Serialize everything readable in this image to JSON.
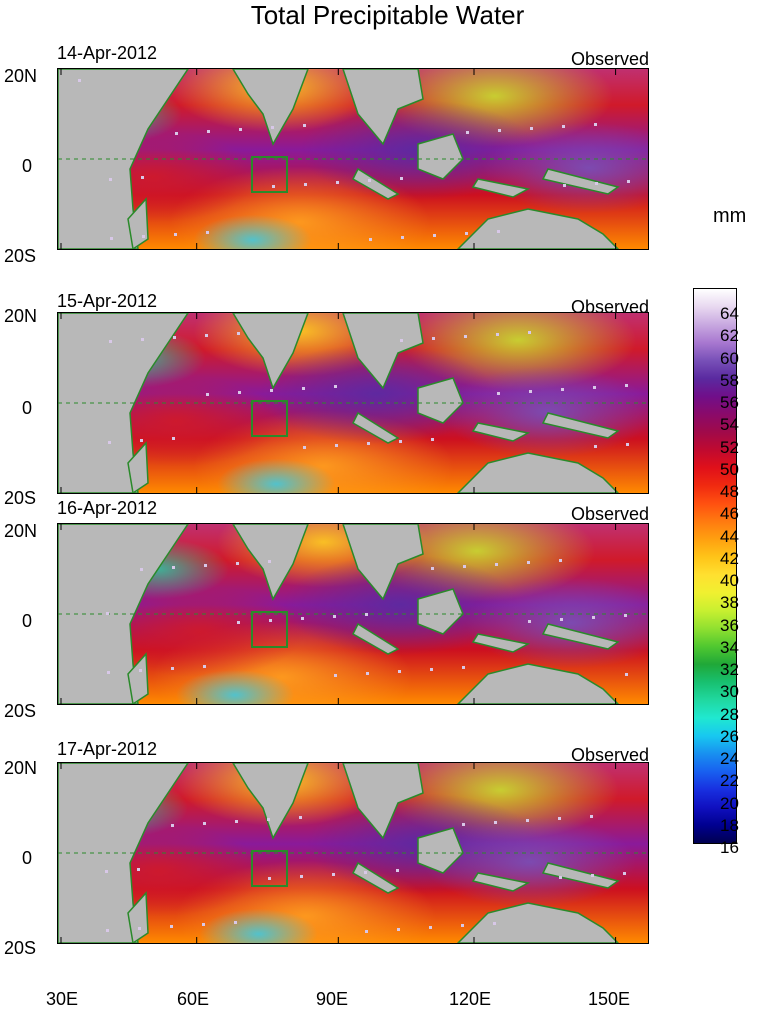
{
  "title": "Total Precipitable Water",
  "panels": [
    {
      "date": "14-Apr-2012",
      "label": "Observed"
    },
    {
      "date": "15-Apr-2012",
      "label": "Observed"
    },
    {
      "date": "16-Apr-2012",
      "label": "Observed"
    },
    {
      "date": "17-Apr-2012",
      "label": "Observed"
    }
  ],
  "y_labels": [
    "20N",
    "0",
    "20S"
  ],
  "x_labels": [
    "30E",
    "60E",
    "90E",
    "120E",
    "150E"
  ],
  "colorbar": {
    "unit": "mm",
    "labels": [
      "64",
      "62",
      "60",
      "58",
      "56",
      "54",
      "52",
      "50",
      "48",
      "46",
      "44",
      "42",
      "40",
      "38",
      "36",
      "34",
      "32",
      "30",
      "28",
      "26",
      "24",
      "22",
      "20",
      "18",
      "16"
    ],
    "colors": [
      "#ffffff",
      "#e8d8f0",
      "#c8a8e0",
      "#a878d0",
      "#7850b8",
      "#5a2aa0",
      "#700f8a",
      "#8a0a6a",
      "#a00a4a",
      "#c00a30",
      "#e0101a",
      "#f02a10",
      "#ff5010",
      "#ff7a10",
      "#ffa010",
      "#ffc418",
      "#ffe030",
      "#f0f030",
      "#c8f030",
      "#90e030",
      "#50c830",
      "#20a838",
      "#18c070",
      "#20d8a0",
      "#20e8d0",
      "#18c8f0",
      "#1890f0",
      "#1860f0",
      "#1830e0",
      "#1010c0",
      "#000090",
      "#000050"
    ],
    "land_color": "#b8b8b8",
    "coast_color": "#2a8a2a"
  }
}
